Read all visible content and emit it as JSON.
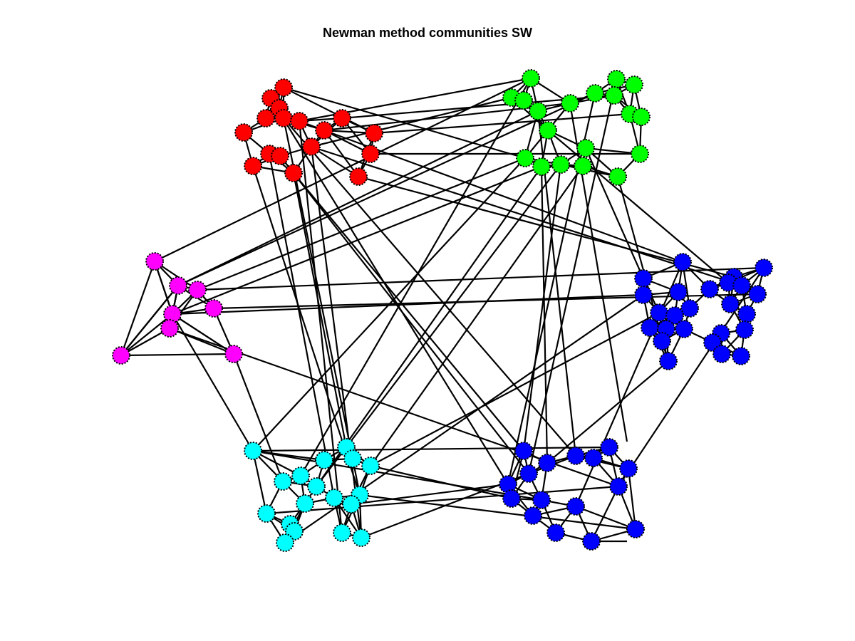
{
  "figure": {
    "title": "Newman method communities SW"
  },
  "colors": {
    "background": "#ffffff",
    "edge": "#000000",
    "node_outline": "#000000",
    "red": "#ff0000",
    "green": "#00ff00",
    "magenta": "#ff00ff",
    "blue": "#0000ff",
    "cyan": "#00ffff"
  },
  "communities": [
    {
      "name": "red",
      "color": "#ff0000"
    },
    {
      "name": "green",
      "color": "#00ff00"
    },
    {
      "name": "magenta",
      "color": "#ff00ff"
    },
    {
      "name": "blue",
      "color": "#0000ff"
    },
    {
      "name": "cyan",
      "color": "#00ffff"
    }
  ],
  "node_marker": "filled circle with dotted black outline"
}
